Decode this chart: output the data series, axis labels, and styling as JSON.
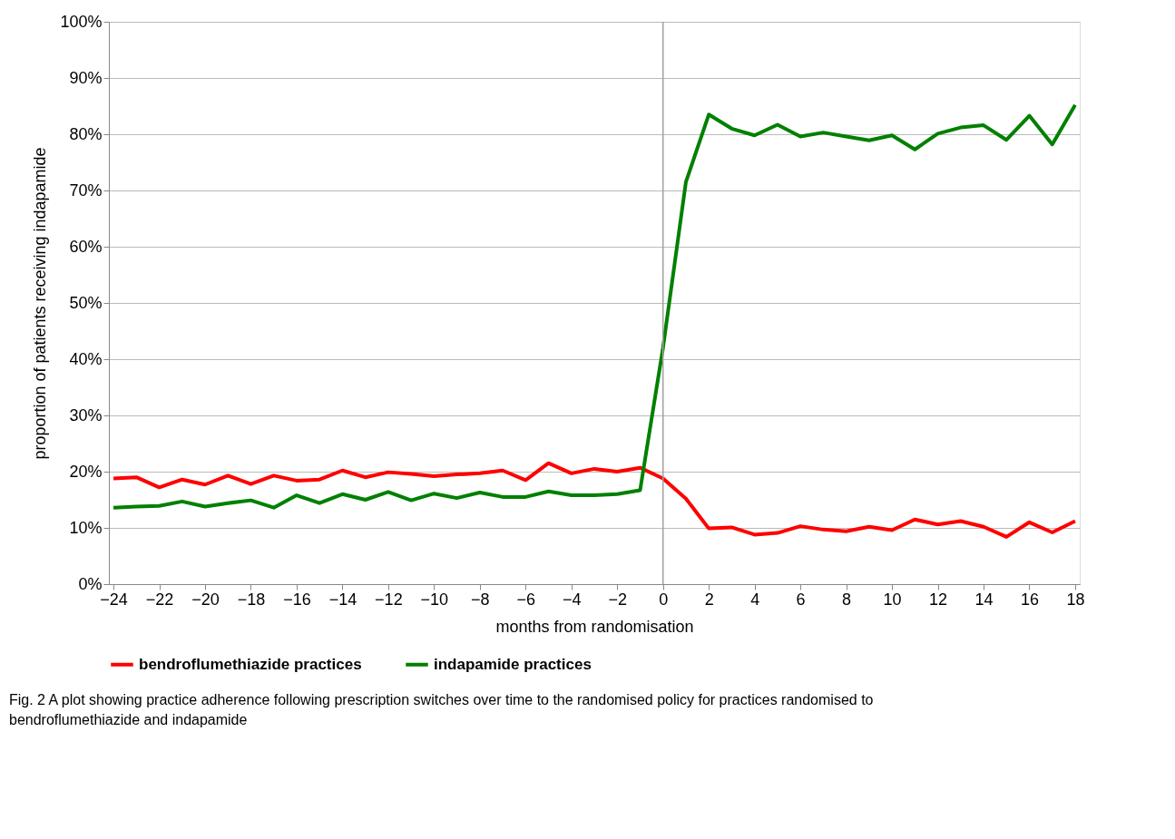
{
  "chart_data": {
    "type": "line",
    "xlabel": "months from randomisation",
    "ylabel": "proportion of patients receiving indapamide",
    "x": [
      -24,
      -23,
      -22,
      -21,
      -20,
      -19,
      -18,
      -17,
      -16,
      -15,
      -14,
      -13,
      -12,
      -11,
      -10,
      -9,
      -8,
      -7,
      -6,
      -5,
      -4,
      -3,
      -2,
      -1,
      0,
      1,
      2,
      3,
      4,
      5,
      6,
      7,
      8,
      9,
      10,
      11,
      12,
      13,
      14,
      15,
      16,
      17,
      18
    ],
    "series": [
      {
        "name": "bendroflumethiazide practices",
        "color": "#ff0000",
        "values": [
          18.8,
          19.0,
          17.2,
          18.6,
          17.7,
          19.3,
          17.8,
          19.3,
          18.4,
          18.6,
          20.2,
          19.0,
          19.9,
          19.6,
          19.2,
          19.5,
          19.7,
          20.2,
          18.5,
          21.5,
          19.7,
          20.5,
          20.0,
          20.7,
          18.8,
          15.2,
          9.9,
          10.1,
          8.8,
          9.1,
          10.3,
          9.7,
          9.4,
          10.2,
          9.6,
          11.5,
          10.6,
          11.2,
          10.2,
          8.4,
          11.0,
          9.2,
          11.2
        ]
      },
      {
        "name": "indapamide practices",
        "color": "#008000",
        "values": [
          13.6,
          13.8,
          13.9,
          14.7,
          13.8,
          14.4,
          14.9,
          13.6,
          15.8,
          14.4,
          16.0,
          15.0,
          16.4,
          14.9,
          16.1,
          15.3,
          16.3,
          15.5,
          15.5,
          16.5,
          15.8,
          15.8,
          16.0,
          16.7,
          42,
          71.5,
          83.5,
          81.0,
          79.8,
          81.7,
          79.6,
          80.3,
          79.6,
          78.9,
          79.8,
          77.3,
          80.1,
          81.2,
          81.6,
          79.0,
          83.3,
          78.2,
          85.2
        ]
      }
    ],
    "xlim": [
      -24.2,
      18.2
    ],
    "xticks": [
      -24,
      -22,
      -20,
      -18,
      -16,
      -14,
      -12,
      -10,
      -8,
      -6,
      -4,
      -2,
      0,
      2,
      4,
      6,
      8,
      10,
      12,
      14,
      16,
      18
    ],
    "ylim": [
      0,
      100
    ],
    "yticks": [
      {
        "value": 0,
        "label": "0%"
      },
      {
        "value": 10,
        "label": "10%"
      },
      {
        "value": 20,
        "label": "20%"
      },
      {
        "value": 30,
        "label": "30%"
      },
      {
        "value": 40,
        "label": "40%"
      },
      {
        "value": 50,
        "label": "50%"
      },
      {
        "value": 60,
        "label": "60%"
      },
      {
        "value": 70,
        "label": "70%"
      },
      {
        "value": 80,
        "label": "80%"
      },
      {
        "value": 90,
        "label": "90%"
      },
      {
        "value": 100,
        "label": "100%"
      }
    ],
    "grid": "y",
    "ref_lines": [
      {
        "axis": "x",
        "value": 0,
        "color": "#a0a0a0"
      }
    ],
    "legend": "bottom",
    "marker": "none",
    "line_style": "solid",
    "annotations": [
      "Fig. 2  A plot showing practice adherence following prescription switches over time to the randomised policy for practices randomised to bendroflumethiazide and indapamide"
    ]
  }
}
